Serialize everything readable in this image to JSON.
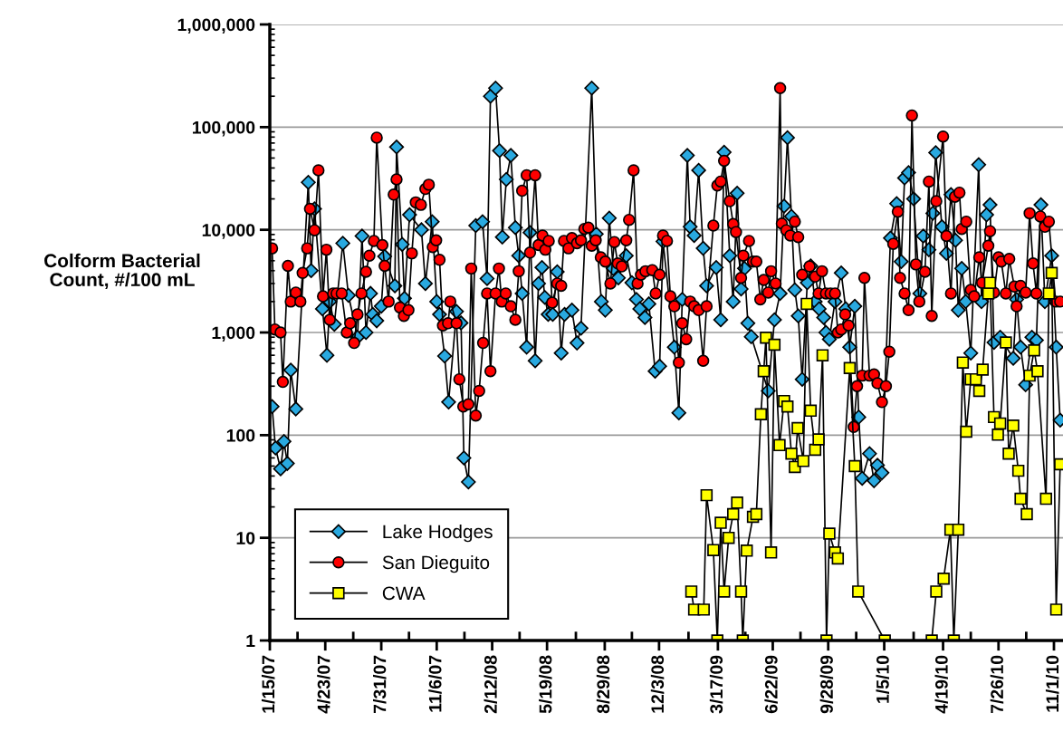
{
  "chart_data": {
    "type": "line",
    "ylabel": "Colform Bacterial\nCount, #/100 mL",
    "log": "y",
    "ylim": [
      1,
      1000000
    ],
    "yticks": [
      1,
      10,
      100,
      {
        "value": 1000,
        "label": "1,000"
      },
      {
        "value": 10000,
        "label": "10,000"
      },
      {
        "value": 100000,
        "label": "100,000"
      },
      {
        "value": 1000000,
        "label": "1,000,000"
      }
    ],
    "xlim": [
      "2007-01-15",
      "2010-11-17"
    ],
    "xticks": [
      {
        "value": "2007-01-15",
        "label": "1/15/07"
      },
      {
        "value": "2007-04-23",
        "label": "4/23/07"
      },
      {
        "value": "2007-07-31",
        "label": "7/31/07"
      },
      {
        "value": "2007-11-06",
        "label": "11/6/07"
      },
      {
        "value": "2008-02-12",
        "label": "2/12/08"
      },
      {
        "value": "2008-05-19",
        "label": "5/19/08"
      },
      {
        "value": "2008-08-29",
        "label": "8/29/08"
      },
      {
        "value": "2008-12-03",
        "label": "12/3/08"
      },
      {
        "value": "2009-03-17",
        "label": "3/17/09"
      },
      {
        "value": "2009-06-22",
        "label": "6/22/09"
      },
      {
        "value": "2009-09-28",
        "label": "9/28/09"
      },
      {
        "value": "2010-01-05",
        "label": "1/5/10"
      },
      {
        "value": "2010-04-19",
        "label": "4/19/10"
      },
      {
        "value": "2010-07-26",
        "label": "7/26/10"
      },
      {
        "value": "2010-11-01",
        "label": "11/1/10"
      }
    ],
    "grid": "y",
    "legend": "bottom left",
    "line_style": "solid",
    "series": [
      {
        "name": "Lake Hodges",
        "color": "#29a9e0",
        "marker": "diamond",
        "x": [
          "2007-01-19",
          "2007-01-25",
          "2007-02-03",
          "2007-02-09",
          "2007-02-15",
          "2007-02-21",
          "2007-03-02",
          "2007-03-24",
          "2007-03-29",
          "2007-04-04",
          "2007-04-18",
          "2007-04-26",
          "2007-05-01",
          "2007-05-09",
          "2007-05-24",
          "2007-06-03",
          "2007-06-19",
          "2007-06-27",
          "2007-07-04",
          "2007-07-12",
          "2007-07-16",
          "2007-07-23",
          "2007-07-31",
          "2007-08-06",
          "2007-08-24",
          "2007-08-27",
          "2007-09-06",
          "2007-09-10",
          "2007-09-19",
          "2007-10-10",
          "2007-10-17",
          "2007-10-29",
          "2007-11-06",
          "2007-11-11",
          "2007-11-20",
          "2007-11-27",
          "2007-12-11",
          "2007-12-19",
          "2007-12-24",
          "2008-01-01",
          "2008-01-14",
          "2008-01-26",
          "2008-02-03",
          "2008-02-09",
          "2008-02-18",
          "2008-02-25",
          "2008-03-01",
          "2008-03-08",
          "2008-03-16",
          "2008-03-24",
          "2008-03-30",
          "2008-04-05",
          "2008-04-13",
          "2008-04-19",
          "2008-04-28",
          "2008-05-04",
          "2008-05-10",
          "2008-05-15",
          "2008-05-21",
          "2008-05-29",
          "2008-06-06",
          "2008-06-13",
          "2008-06-19",
          "2008-07-02",
          "2008-07-11",
          "2008-07-18",
          "2008-08-06",
          "2008-08-14",
          "2008-08-23",
          "2008-08-30",
          "2008-09-06",
          "2008-09-13",
          "2008-09-22",
          "2008-10-06",
          "2008-10-16",
          "2008-10-24",
          "2008-10-30",
          "2008-11-08",
          "2008-11-15",
          "2008-11-26",
          "2008-12-04",
          "2008-12-10",
          "2008-12-30",
          "2009-01-07",
          "2009-01-13",
          "2009-01-22",
          "2009-01-27",
          "2009-02-03",
          "2009-02-11",
          "2009-02-19",
          "2009-02-25",
          "2009-03-14",
          "2009-03-22",
          "2009-03-28",
          "2009-04-07",
          "2009-04-13",
          "2009-04-20",
          "2009-04-27",
          "2009-05-03",
          "2009-05-09",
          "2009-05-15",
          "2009-06-14",
          "2009-06-25",
          "2009-07-05",
          "2009-07-12",
          "2009-07-18",
          "2009-07-25",
          "2009-07-31",
          "2009-08-06",
          "2009-08-13",
          "2009-08-22",
          "2009-08-28",
          "2009-09-05",
          "2009-09-12",
          "2009-09-20",
          "2009-09-24",
          "2009-09-30",
          "2009-10-10",
          "2009-10-21",
          "2009-10-29",
          "2009-11-05",
          "2009-11-14",
          "2009-11-21",
          "2009-11-27",
          "2009-12-10",
          "2009-12-18",
          "2009-12-24",
          "2010-01-01",
          "2010-01-16",
          "2010-01-27",
          "2010-02-04",
          "2010-02-10",
          "2010-02-17",
          "2010-02-26",
          "2010-03-09",
          "2010-03-15",
          "2010-03-25",
          "2010-04-01",
          "2010-04-06",
          "2010-04-17",
          "2010-04-25",
          "2010-05-03",
          "2010-05-11",
          "2010-05-16",
          "2010-05-22",
          "2010-05-29",
          "2010-06-07",
          "2010-06-21",
          "2010-06-26",
          "2010-07-05",
          "2010-07-11",
          "2010-07-18",
          "2010-07-29",
          "2010-08-21",
          "2010-08-27",
          "2010-09-03",
          "2010-09-12",
          "2010-09-23",
          "2010-10-01",
          "2010-10-09",
          "2010-10-16",
          "2010-10-28",
          "2010-11-05",
          "2010-11-12"
        ],
        "values": [
          190,
          75,
          47,
          87,
          53,
          430,
          180,
          29000,
          4000,
          16000,
          1700,
          600,
          2000,
          1200,
          7400,
          2300,
          900,
          8700,
          1000,
          2400,
          1500,
          1300,
          1800,
          5500,
          2850,
          64000,
          7200,
          2150,
          14000,
          10000,
          3000,
          12000,
          2000,
          1500,
          590,
          210,
          1600,
          1240,
          60,
          35,
          11000,
          12000,
          3350,
          200000,
          240000,
          59000,
          8500,
          31000,
          53000,
          10500,
          5600,
          2400,
          720,
          9400,
          530,
          3000,
          4300,
          2200,
          1500,
          1500,
          3900,
          630,
          1500,
          1650,
          790,
          1100,
          240000,
          9100,
          2000,
          1650,
          13000,
          4200,
          3400,
          5600,
          3050,
          2100,
          1700,
          1400,
          1900,
          420,
          470,
          7700,
          720,
          165,
          2100,
          53000,
          10700,
          8800,
          38000,
          6600,
          2850,
          4300,
          1330,
          57000,
          5600,
          2000,
          22700,
          2650,
          4200,
          1230,
          910,
          270,
          1330,
          2400,
          17000,
          79000,
          13500,
          2600,
          1450,
          350,
          3050,
          4450,
          2000,
          1700,
          1400,
          1000,
          860,
          2000,
          3800,
          1700,
          720,
          1800,
          150,
          38,
          66,
          36,
          51,
          43,
          8300,
          18000,
          4900,
          32000,
          36000,
          20000,
          2400,
          8700,
          6400,
          14500,
          56500,
          10700,
          5900,
          22000,
          7900,
          1650,
          4200,
          2000,
          630,
          43000,
          2000,
          14000,
          17500,
          800,
          900,
          560,
          2100,
          720,
          310,
          900,
          840,
          17500,
          2000,
          5600,
          720,
          140
        ]
      },
      {
        "name": "San Dieguito",
        "color": "#ff0000",
        "marker": "circle",
        "x": [
          "2007-01-19",
          "2007-01-24",
          "2007-02-03",
          "2007-02-07",
          "2007-02-16",
          "2007-02-21",
          "2007-03-02",
          "2007-03-10",
          "2007-03-14",
          "2007-03-22",
          "2007-03-27",
          "2007-04-04",
          "2007-04-11",
          "2007-04-19",
          "2007-04-25",
          "2007-05-01",
          "2007-05-07",
          "2007-05-13",
          "2007-05-22",
          "2007-05-31",
          "2007-06-06",
          "2007-06-13",
          "2007-06-19",
          "2007-06-26",
          "2007-07-04",
          "2007-07-10",
          "2007-07-18",
          "2007-07-23",
          "2007-08-02",
          "2007-08-06",
          "2007-08-13",
          "2007-08-22",
          "2007-08-27",
          "2007-09-02",
          "2007-09-09",
          "2007-09-17",
          "2007-09-23",
          "2007-09-30",
          "2007-10-09",
          "2007-10-17",
          "2007-10-23",
          "2007-10-30",
          "2007-11-05",
          "2007-11-11",
          "2007-11-17",
          "2007-11-26",
          "2007-11-30",
          "2007-12-11",
          "2007-12-16",
          "2007-12-23",
          "2008-01-01",
          "2008-01-06",
          "2008-01-14",
          "2008-01-20",
          "2008-01-27",
          "2008-02-03",
          "2008-02-09",
          "2008-02-18",
          "2008-02-24",
          "2008-02-29",
          "2008-03-07",
          "2008-03-16",
          "2008-03-24",
          "2008-03-30",
          "2008-04-05",
          "2008-04-13",
          "2008-04-19",
          "2008-04-28",
          "2008-05-04",
          "2008-05-11",
          "2008-05-16",
          "2008-05-22",
          "2008-05-28",
          "2008-06-06",
          "2008-06-13",
          "2008-06-18",
          "2008-06-26",
          "2008-07-02",
          "2008-07-11",
          "2008-07-18",
          "2008-07-24",
          "2008-07-31",
          "2008-08-06",
          "2008-08-13",
          "2008-08-22",
          "2008-08-30",
          "2008-09-08",
          "2008-09-15",
          "2008-09-21",
          "2008-09-28",
          "2008-10-06",
          "2008-10-11",
          "2008-10-19",
          "2008-10-26",
          "2008-11-01",
          "2008-11-09",
          "2008-11-21",
          "2008-11-27",
          "2008-12-04",
          "2008-12-10",
          "2008-12-17",
          "2008-12-23",
          "2008-12-30",
          "2009-01-07",
          "2009-01-13",
          "2009-01-20",
          "2009-01-27",
          "2009-02-03",
          "2009-02-11",
          "2009-02-19",
          "2009-02-25",
          "2009-03-09",
          "2009-03-16",
          "2009-03-22",
          "2009-03-28",
          "2009-04-07",
          "2009-04-13",
          "2009-04-18",
          "2009-04-27",
          "2009-05-01",
          "2009-05-11",
          "2009-05-18",
          "2009-05-24",
          "2009-05-31",
          "2009-06-06",
          "2009-06-14",
          "2009-06-19",
          "2009-06-27",
          "2009-07-05",
          "2009-07-08",
          "2009-07-16",
          "2009-07-23",
          "2009-07-31",
          "2009-08-06",
          "2009-08-13",
          "2009-08-26",
          "2009-09-05",
          "2009-09-11",
          "2009-09-17",
          "2009-09-24",
          "2009-10-02",
          "2009-10-10",
          "2009-10-15",
          "2009-10-21",
          "2009-10-28",
          "2009-11-03",
          "2009-11-12",
          "2009-11-18",
          "2009-11-27",
          "2009-12-01",
          "2009-12-10",
          "2009-12-18",
          "2009-12-24",
          "2010-01-01",
          "2010-01-08",
          "2010-01-14",
          "2010-01-21",
          "2010-01-29",
          "2010-02-02",
          "2010-02-10",
          "2010-02-17",
          "2010-02-23",
          "2010-03-02",
          "2010-03-08",
          "2010-03-18",
          "2010-03-25",
          "2010-03-30",
          "2010-04-07",
          "2010-04-19",
          "2010-04-25",
          "2010-05-03",
          "2010-05-10",
          "2010-05-18",
          "2010-05-22",
          "2010-05-30",
          "2010-06-07",
          "2010-06-13",
          "2010-06-22",
          "2010-06-27",
          "2010-07-08",
          "2010-07-11",
          "2010-07-18",
          "2010-07-26",
          "2010-07-31",
          "2010-08-08",
          "2010-08-14",
          "2010-08-23",
          "2010-08-27",
          "2010-09-03",
          "2010-09-12",
          "2010-09-19",
          "2010-09-25",
          "2010-10-01",
          "2010-10-08",
          "2010-10-16",
          "2010-10-23",
          "2010-11-04",
          "2010-11-12"
        ],
        "values": [
          6600,
          1070,
          1000,
          330,
          4450,
          2000,
          2450,
          2000,
          3800,
          6600,
          16000,
          9900,
          38000,
          2250,
          6400,
          1330,
          2400,
          2400,
          2400,
          1000,
          1230,
          790,
          1500,
          2400,
          3900,
          5600,
          7800,
          79000,
          7100,
          4450,
          2000,
          22000,
          31000,
          1750,
          1450,
          1650,
          5900,
          18500,
          17500,
          25000,
          27500,
          6800,
          7900,
          5100,
          1170,
          1230,
          2000,
          1230,
          350,
          190,
          200,
          4200,
          155,
          270,
          790,
          2400,
          420,
          2400,
          4200,
          2000,
          2400,
          1800,
          1330,
          3950,
          24000,
          34000,
          6000,
          34000,
          7100,
          8800,
          6400,
          7800,
          1950,
          3000,
          2850,
          7800,
          6600,
          8300,
          7400,
          7900,
          10200,
          10500,
          7000,
          7900,
          5400,
          4900,
          3000,
          7600,
          4700,
          4400,
          7900,
          12500,
          38000,
          3000,
          3650,
          3950,
          4050,
          2400,
          3650,
          8800,
          7800,
          2250,
          1800,
          510,
          1230,
          860,
          2000,
          1800,
          1650,
          530,
          1800,
          11000,
          27000,
          29500,
          47000,
          19000,
          11400,
          9500,
          3400,
          5600,
          7800,
          4900,
          4900,
          2100,
          3250,
          2450,
          3950,
          3000,
          240000,
          11500,
          9900,
          8800,
          12000,
          8500,
          3650,
          4400,
          3500,
          2400,
          3950,
          2400,
          2400,
          2400,
          1000,
          1070,
          1500,
          1170,
          120,
          300,
          380,
          3400,
          380,
          390,
          320,
          210,
          300,
          650,
          7300,
          15000,
          3400,
          2400,
          1650,
          130000,
          4600,
          2000,
          3900,
          29500,
          1450,
          19000,
          81000,
          8700,
          2400,
          21000,
          23000,
          10200,
          12000,
          2600,
          2250,
          5400,
          3050,
          7000,
          9700,
          2450,
          5400,
          4900,
          2400,
          5200,
          2800,
          1800,
          2850,
          2450,
          14500,
          4700,
          2400,
          13500,
          10700,
          12000,
          2000,
          2000
        ]
      },
      {
        "name": "CWA",
        "color": "#ffff00",
        "marker": "square",
        "x": [
          "2009-01-29",
          "2009-02-03",
          "2009-02-20",
          "2009-02-25",
          "2009-03-09",
          "2009-03-16",
          "2009-03-22",
          "2009-03-28",
          "2009-04-05",
          "2009-04-13",
          "2009-04-20",
          "2009-04-27",
          "2009-04-30",
          "2009-05-07",
          "2009-05-18",
          "2009-05-24",
          "2009-06-01",
          "2009-06-06",
          "2009-06-10",
          "2009-06-19",
          "2009-06-25",
          "2009-07-04",
          "2009-07-12",
          "2009-07-18",
          "2009-07-25",
          "2009-07-31",
          "2009-08-05",
          "2009-08-15",
          "2009-08-21",
          "2009-08-28",
          "2009-09-05",
          "2009-09-11",
          "2009-09-18",
          "2009-09-25",
          "2009-09-30",
          "2009-10-10",
          "2009-10-15",
          "2009-11-05",
          "2009-11-14",
          "2009-11-20",
          "2010-01-06",
          "2010-03-30",
          "2010-04-07",
          "2010-04-20",
          "2010-05-02",
          "2010-05-08",
          "2010-05-16",
          "2010-05-24",
          "2010-05-30",
          "2010-06-07",
          "2010-06-16",
          "2010-06-22",
          "2010-06-28",
          "2010-07-08",
          "2010-07-11",
          "2010-07-18",
          "2010-07-25",
          "2010-07-29",
          "2010-08-08",
          "2010-08-13",
          "2010-08-21",
          "2010-08-30",
          "2010-09-03",
          "2010-09-14",
          "2010-09-19",
          "2010-09-27",
          "2010-10-03",
          "2010-10-18",
          "2010-10-23",
          "2010-10-28",
          "2010-11-05",
          "2010-11-12"
        ],
        "values": [
          3,
          2,
          2,
          26,
          7.6,
          1,
          14,
          3,
          10,
          17,
          22,
          3,
          1,
          7.5,
          16,
          17,
          160,
          420,
          890,
          7.2,
          760,
          80,
          215,
          190,
          66,
          49,
          117,
          56,
          1900,
          173,
          72,
          91,
          600,
          1,
          11,
          7.2,
          6.3,
          450,
          50,
          3,
          1,
          1,
          3,
          4,
          12,
          1,
          12,
          510,
          108,
          350,
          350,
          270,
          435,
          2400,
          3050,
          150,
          101,
          130,
          800,
          66,
          124,
          45,
          24,
          17,
          380,
          670,
          420,
          24,
          2400,
          3800,
          2,
          52
        ]
      }
    ]
  }
}
